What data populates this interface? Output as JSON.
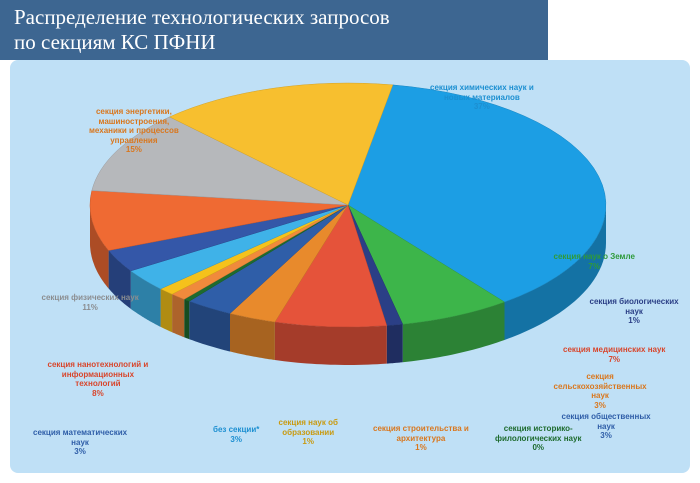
{
  "title": {
    "line1": "Распределение технологических запросов",
    "line2": "по секциям КС ПФНИ"
  },
  "chart_data": {
    "type": "pie",
    "title": "Распределение технологических запросов по секциям КС ПФНИ",
    "legend": "none",
    "slices": [
      {
        "label_lines": [
          "секция химических наук и",
          "новых материалов"
        ],
        "value": 37,
        "value_text": "37%",
        "color": "#1c9ee4"
      },
      {
        "label_lines": [
          "секция наук о Земле"
        ],
        "value": 7,
        "value_text": "7%",
        "color": "#3db54a"
      },
      {
        "label_lines": [
          "секция биологических",
          "наук"
        ],
        "value": 1,
        "value_text": "1%",
        "color": "#2b3f86"
      },
      {
        "label_lines": [
          "секция медицинских наук"
        ],
        "value": 7,
        "value_text": "7%",
        "color": "#e5533a"
      },
      {
        "label_lines": [
          "секция",
          "сельскохозяйственных",
          "наук"
        ],
        "value": 3,
        "value_text": "3%",
        "color": "#e88a2c"
      },
      {
        "label_lines": [
          "секция общественных",
          "наук"
        ],
        "value": 3,
        "value_text": "3%",
        "color": "#2f5ea8"
      },
      {
        "label_lines": [
          "секция историко-",
          "филологических наук"
        ],
        "value": 0,
        "value_text": "0%",
        "color": "#1e6b2e"
      },
      {
        "label_lines": [
          "секция строительства и",
          "архитектура"
        ],
        "value": 1,
        "value_text": "1%",
        "color": "#f08a3c"
      },
      {
        "label_lines": [
          "секция наук об",
          "образовании"
        ],
        "value": 1,
        "value_text": "1%",
        "color": "#f5c21b"
      },
      {
        "label_lines": [
          "без секции*"
        ],
        "value": 3,
        "value_text": "3%",
        "color": "#3fb2e8"
      },
      {
        "label_lines": [
          "секция математических",
          "наук"
        ],
        "value": 3,
        "value_text": "3%",
        "color": "#3457a8"
      },
      {
        "label_lines": [
          "секция нанотехнологий и",
          "информационных",
          "технологий"
        ],
        "value": 8,
        "value_text": "8%",
        "color": "#ef6a33"
      },
      {
        "label_lines": [
          "секция физических наук"
        ],
        "value": 11,
        "value_text": "11%",
        "color": "#b6b8bb"
      },
      {
        "label_lines": [
          "секция энергетики,",
          "машиностроения,",
          "механики и процессов",
          "управления"
        ],
        "value": 15,
        "value_text": "15%",
        "color": "#f7bf2f"
      }
    ]
  },
  "colors": {
    "title_bg": "#3d6691",
    "title_text": "#ffffff",
    "panel_bg": "#bfe0f6",
    "label_text": [
      "#1c8fd1",
      "#2e9a3a",
      "#2b3f86",
      "#d8462c",
      "#d9771e",
      "#2f5ea8",
      "#1e6b2e",
      "#d9771e",
      "#c99a10",
      "#1c8fd1",
      "#2f5ea8",
      "#d8462c",
      "#8b8d90",
      "#d9771e"
    ]
  }
}
